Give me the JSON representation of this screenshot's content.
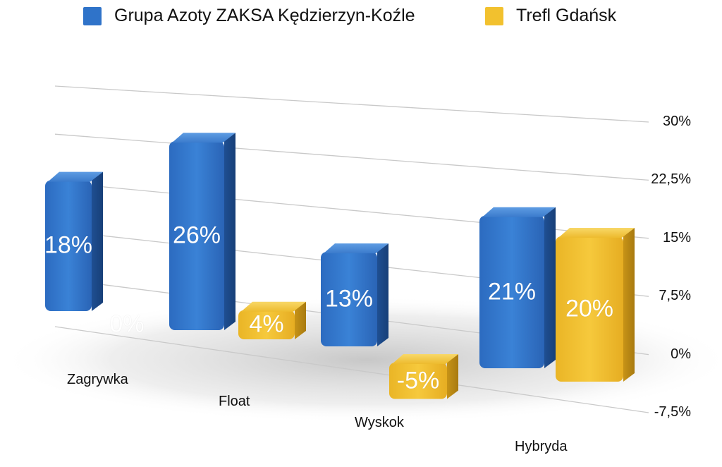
{
  "chart_data": {
    "type": "bar",
    "categories": [
      "Zagrywka",
      "Float",
      "Wyskok",
      "Hybryda"
    ],
    "series": [
      {
        "name": "Grupa Azoty ZAKSA Kędzierzyn-Koźle",
        "values": [
          18,
          26,
          13,
          21
        ],
        "labels": [
          "18%",
          "26%",
          "13%",
          "21%"
        ],
        "color": "#2f73c9"
      },
      {
        "name": "Trefl Gdańsk",
        "values": [
          0,
          4,
          -5,
          20
        ],
        "labels": [
          "0%",
          "4%",
          "-5%",
          "20%"
        ],
        "color": "#f2c12e"
      }
    ],
    "yticks": [
      "30%",
      "22,5%",
      "15%",
      "7,5%",
      "0%",
      "-7,5%"
    ],
    "ylim": [
      -7.5,
      30
    ],
    "grid": true,
    "legend_position": "top"
  }
}
